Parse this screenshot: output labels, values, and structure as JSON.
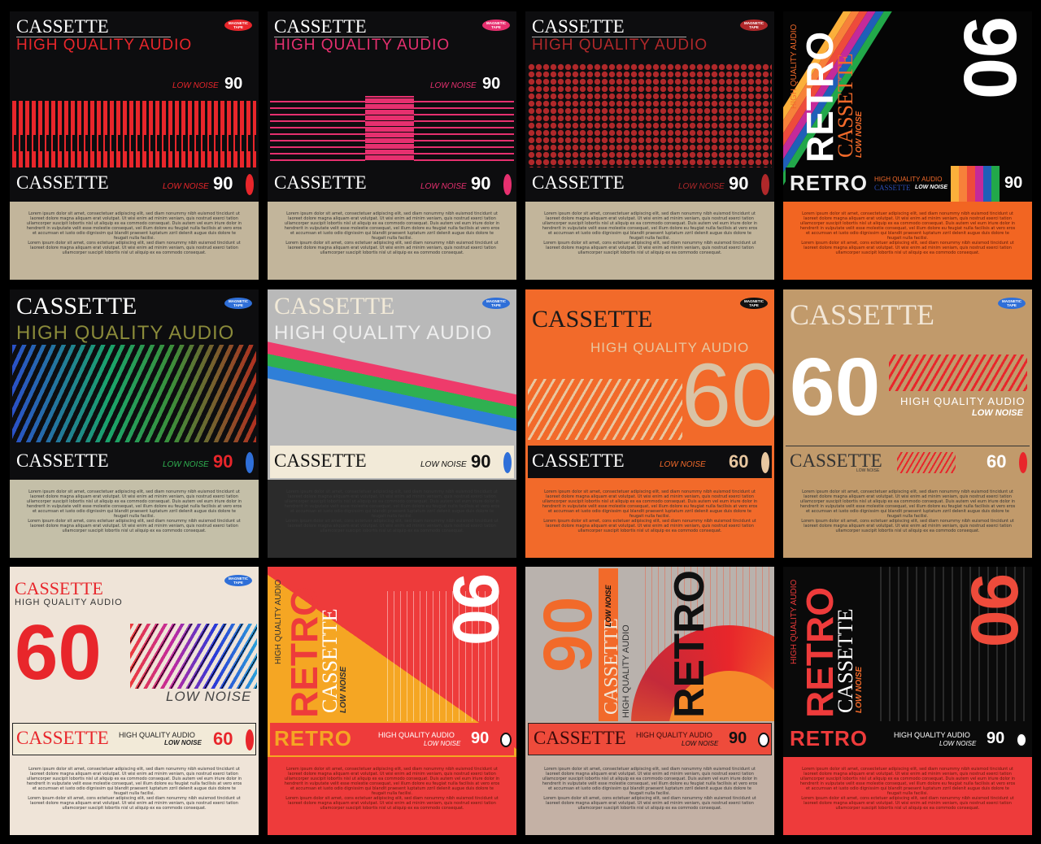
{
  "common": {
    "cassette": "CASSETTE",
    "hqa": "HIGH QUALITY AUDIO",
    "low_noise": "LOW NOISE",
    "retro": "RETRO",
    "magnetic_tape": "MAGNETIC TAPE",
    "lorem_p1": "Lorem ipsum dolor sit amet, consectetuer adipiscing elit, sed diam nonummy nibh euismod tincidunt ut laoreet dolore magna aliquam erat volutpat. Ut wisi enim ad minim veniam, quis nostrud exerci tation ullamcorper suscipit lobortis nisl ut aliquip ex ea commodo consequat. Duis autem vel eum iriure dolor in hendrerit in vulputate velit esse molestie consequat, vel illum dolore eu feugiat nulla facilisis at vero eros et accumsan et iusto odio dignissim qui blandit praesent luptatum zzril delenit augue duis dolore te feugait nulla facilisi.",
    "lorem_p2": "Lorem ipsum dolor sit amet, cons ectetuer adipiscing elit, sed diam nonummy nibh euismod tincidunt ut laoreet dolore magna aliquam erat volutpat. Ut wisi enim ad minim veniam, quis nostrud exerci tation ullamcorper suscipit lobortis nisl ut aliquip ex ea commodo consequat."
  },
  "cards": [
    {
      "style": "red-bars",
      "minutes": "90",
      "colors": {
        "art": "#0d0d0f",
        "footer": "#c2b59b",
        "accent": "#e8262b",
        "title": "#ffffff"
      }
    },
    {
      "style": "pink-lines",
      "minutes": "90",
      "colors": {
        "art": "#0d0d0f",
        "footer": "#c2b59b",
        "accent": "#e6306f",
        "title": "#ffffff"
      }
    },
    {
      "style": "red-dots",
      "minutes": "90",
      "colors": {
        "art": "#0d0d0f",
        "footer": "#c2b59b",
        "accent": "#b0282a",
        "title": "#ffffff"
      }
    },
    {
      "style": "retro-rainbow",
      "minutes": "90",
      "colors": {
        "art": "#050505",
        "footer": "#f26522",
        "accent": "#f26522",
        "title": "#ffffff"
      }
    },
    {
      "style": "spectrum-diagonals",
      "minutes": "90",
      "colors": {
        "art": "#0d0d0f",
        "footer": "#c4bfa8",
        "accent": "#8a8a3a",
        "title": "#ffffff"
      }
    },
    {
      "style": "tricolor-band",
      "minutes": "90",
      "colors": {
        "art": "#b9b9b9",
        "footer": "#2b2b2b",
        "accent": "#1a1a1a",
        "title": "#ffffff"
      }
    },
    {
      "style": "orange-60",
      "minutes": "60",
      "colors": {
        "art": "#f26a2a",
        "footer": "#f26a2a",
        "accent": "#e8c7a0",
        "title": "#1a1a1a"
      }
    },
    {
      "style": "tan-60",
      "minutes": "60",
      "colors": {
        "art": "#c19a6b",
        "footer": "#c19a6b",
        "accent": "#e8262b",
        "title": "#f2e6d6"
      }
    },
    {
      "style": "cream-60",
      "minutes": "60",
      "colors": {
        "art": "#efe4d8",
        "footer": "#efe4d8",
        "accent": "#e8262b",
        "title": "#e8262b"
      }
    },
    {
      "style": "retro-yellow-red",
      "minutes": "90",
      "colors": {
        "art": "#f5a623",
        "footer": "#ee3b3b",
        "accent": "#e8262b",
        "title": "#ffffff"
      }
    },
    {
      "style": "retro-sun",
      "minutes": "90",
      "colors": {
        "art": "#b9b2ad",
        "footer": "#c4b1a5",
        "accent": "#e8262b",
        "title": "#111111"
      }
    },
    {
      "style": "retro-dark",
      "minutes": "90",
      "colors": {
        "art": "#0a0a0a",
        "footer": "#ee3b3b",
        "accent": "#e8262b",
        "title": "#ffffff"
      }
    }
  ]
}
